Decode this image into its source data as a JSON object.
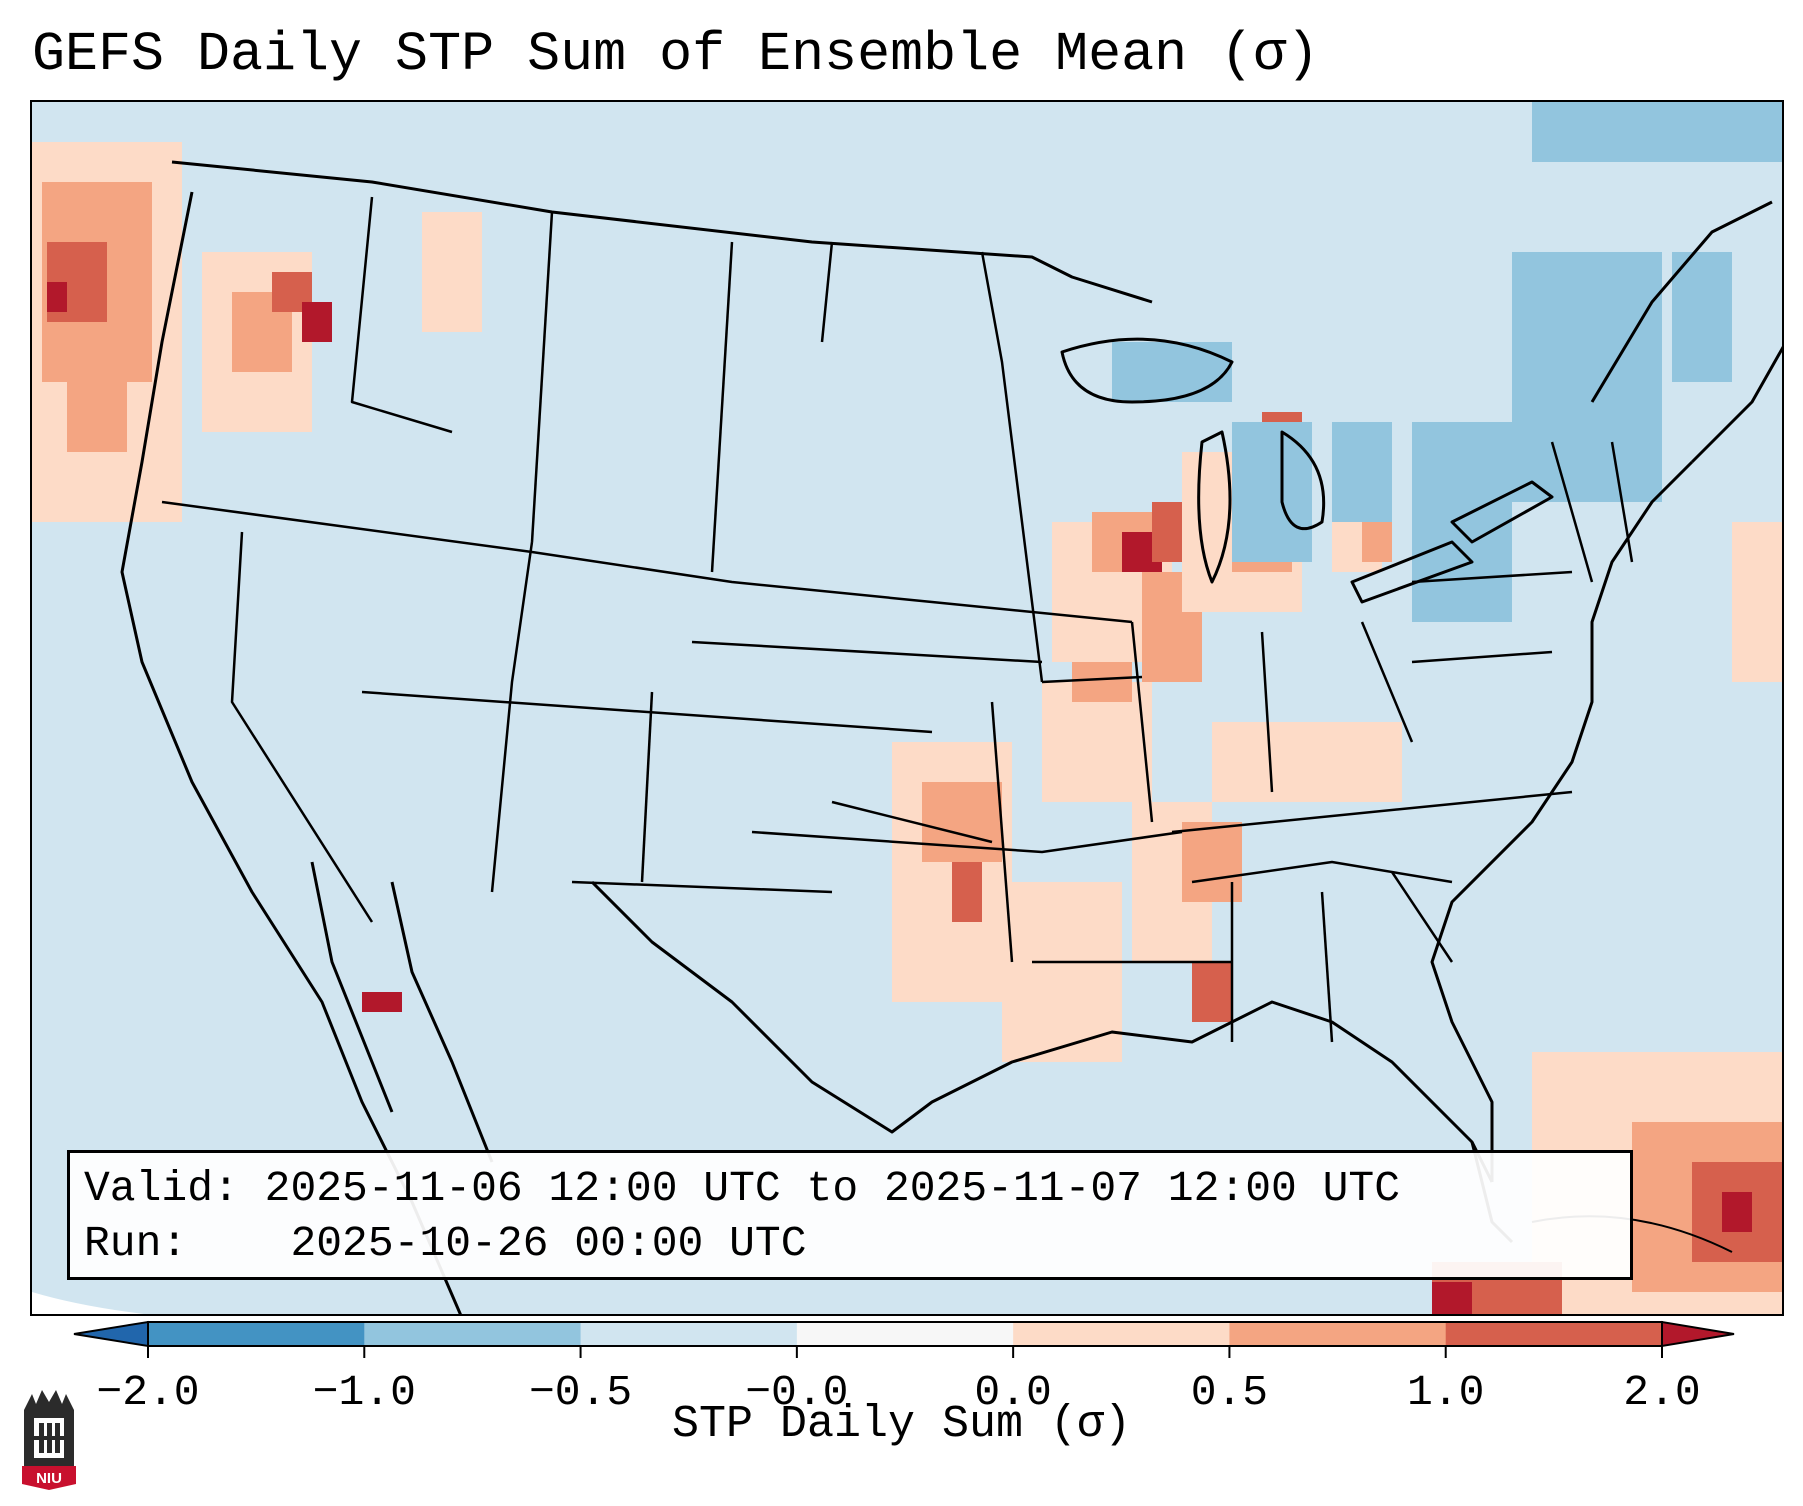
{
  "title": "GEFS Daily STP Sum of Ensemble Mean (σ)",
  "info": {
    "valid_label": "Valid:",
    "valid_value": "2025-11-06 12:00 UTC to 2025-11-07 12:00 UTC",
    "run_label": "Run:",
    "run_value": "2025-10-26 00:00 UTC"
  },
  "colorbar": {
    "label": "STP Daily Sum (σ)",
    "ticks": [
      "−2.0",
      "−1.0",
      "−0.5",
      "−0.0",
      "0.0",
      "0.5",
      "1.0",
      "2.0"
    ],
    "bins": [
      {
        "range": [
          -2.0,
          -1.0
        ],
        "color": "#4393c3"
      },
      {
        "range": [
          -1.0,
          -0.5
        ],
        "color": "#92c5de"
      },
      {
        "range": [
          -0.5,
          0.0
        ],
        "color": "#d1e5f0"
      },
      {
        "range": [
          0.0,
          0.0
        ],
        "color": "#f7f7f7"
      },
      {
        "range": [
          0.0,
          0.5
        ],
        "color": "#fddbc7"
      },
      {
        "range": [
          0.5,
          1.0
        ],
        "color": "#f4a582"
      },
      {
        "range": [
          1.0,
          2.0
        ],
        "color": "#d6604d"
      }
    ],
    "under_color": "#2166ac",
    "over_color": "#b2182b"
  },
  "map": {
    "background_color": "#d1e5f0",
    "outline_color": "#000000",
    "projection": "Lambert Conformal (CONUS)"
  },
  "logo": {
    "text": "NIU",
    "color": "#c8102e"
  }
}
